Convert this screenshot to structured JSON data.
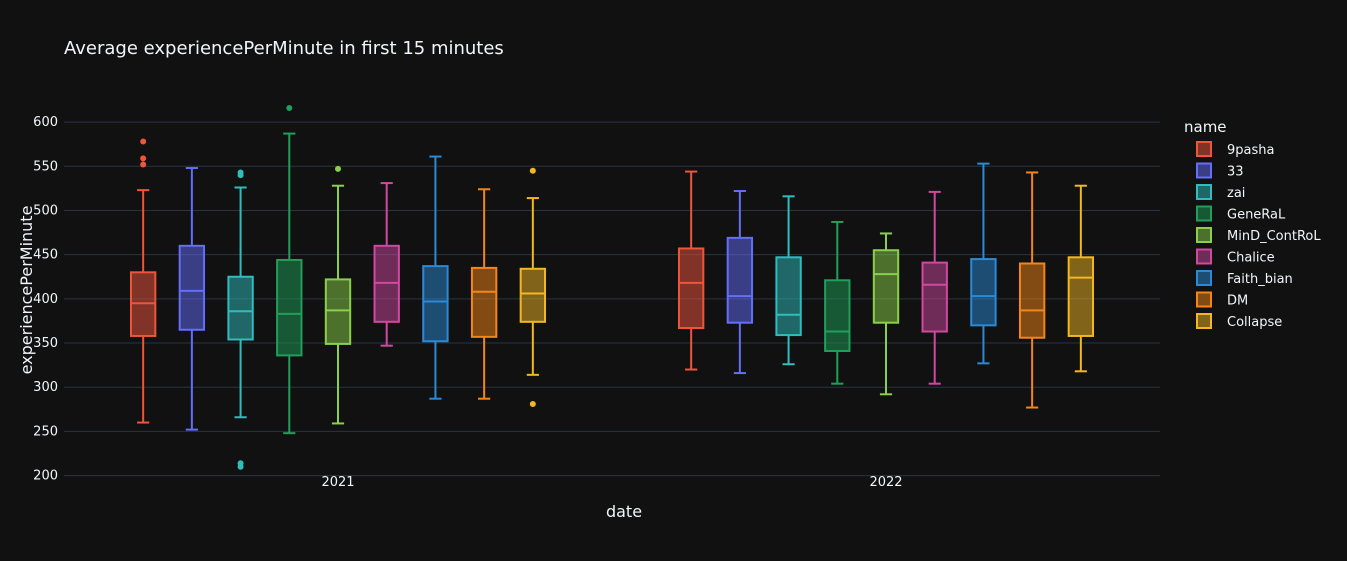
{
  "chart_data": {
    "type": "box",
    "title": "Average experiencePerMinute in first 15 minutes",
    "xlabel": "date",
    "ylabel": "experiencePerMinute",
    "categories": [
      "2021",
      "2022"
    ],
    "ylim": [
      195,
      625
    ],
    "yticks": [
      200,
      250,
      300,
      350,
      400,
      450,
      500,
      550,
      600
    ],
    "grid": true,
    "legend": {
      "title": "name",
      "placement": "right"
    },
    "series": [
      {
        "name": "9pasha",
        "color": "#ef553b",
        "boxes": [
          {
            "min": 260,
            "q1": 358,
            "median": 395,
            "q3": 430,
            "max": 523,
            "outliers": [
              552,
              559,
              578
            ]
          },
          {
            "min": 320,
            "q1": 367,
            "median": 418,
            "q3": 457,
            "max": 544,
            "outliers": []
          }
        ]
      },
      {
        "name": "33",
        "color": "#636efa",
        "boxes": [
          {
            "min": 252,
            "q1": 365,
            "median": 409,
            "q3": 460,
            "max": 548,
            "outliers": []
          },
          {
            "min": 316,
            "q1": 373,
            "median": 403,
            "q3": 469,
            "max": 522,
            "outliers": []
          }
        ]
      },
      {
        "name": "zai",
        "color": "#2fbdbd",
        "boxes": [
          {
            "min": 266,
            "q1": 354,
            "median": 386,
            "q3": 425,
            "max": 526,
            "outliers": [
              210,
              214,
              540,
              543
            ]
          },
          {
            "min": 326,
            "q1": 359,
            "median": 382,
            "q3": 447,
            "max": 516,
            "outliers": []
          }
        ]
      },
      {
        "name": "GeneRaL",
        "color": "#1ea05a",
        "boxes": [
          {
            "min": 248,
            "q1": 336,
            "median": 383,
            "q3": 444,
            "max": 587,
            "outliers": [
              616
            ]
          },
          {
            "min": 304,
            "q1": 341,
            "median": 363,
            "q3": 421,
            "max": 487,
            "outliers": []
          }
        ]
      },
      {
        "name": "MinD_ContRoL",
        "color": "#8ad04a",
        "boxes": [
          {
            "min": 259,
            "q1": 349,
            "median": 387,
            "q3": 422,
            "max": 528,
            "outliers": [
              547
            ]
          },
          {
            "min": 292,
            "q1": 373,
            "median": 428,
            "q3": 455,
            "max": 474,
            "outliers": []
          }
        ]
      },
      {
        "name": "Chalice",
        "color": "#d048a0",
        "boxes": [
          {
            "min": 347,
            "q1": 374,
            "median": 418,
            "q3": 460,
            "max": 531,
            "outliers": []
          },
          {
            "min": 304,
            "q1": 363,
            "median": 416,
            "q3": 441,
            "max": 521,
            "outliers": []
          }
        ]
      },
      {
        "name": "Faith_bian",
        "color": "#2b8ad8",
        "boxes": [
          {
            "min": 287,
            "q1": 352,
            "median": 397,
            "q3": 437,
            "max": 561,
            "outliers": []
          },
          {
            "min": 327,
            "q1": 370,
            "median": 403,
            "q3": 445,
            "max": 553,
            "outliers": []
          }
        ]
      },
      {
        "name": "DM",
        "color": "#f58518",
        "boxes": [
          {
            "min": 287,
            "q1": 357,
            "median": 408,
            "q3": 435,
            "max": 524,
            "outliers": []
          },
          {
            "min": 277,
            "q1": 356,
            "median": 387,
            "q3": 440,
            "max": 543,
            "outliers": []
          }
        ]
      },
      {
        "name": "Collapse",
        "color": "#f2b724",
        "boxes": [
          {
            "min": 314,
            "q1": 374,
            "median": 406,
            "q3": 434,
            "max": 514,
            "outliers": [
              281,
              545
            ]
          },
          {
            "min": 318,
            "q1": 358,
            "median": 424,
            "q3": 447,
            "max": 528,
            "outliers": []
          }
        ]
      }
    ]
  }
}
